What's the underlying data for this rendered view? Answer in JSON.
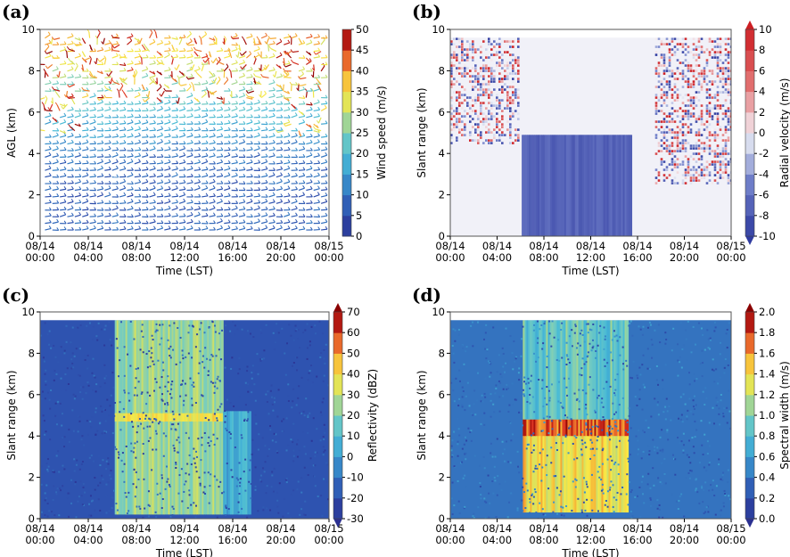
{
  "figure": {
    "time_ticks": [
      "08/14\n00:00",
      "08/14\n04:00",
      "08/14\n08:00",
      "08/14\n12:00",
      "08/14\n16:00",
      "08/14\n20:00",
      "08/15\n00:00"
    ],
    "xlabel": "Time (LST)",
    "colors": {
      "low": "#2b2f8f",
      "mid": "#f4e948",
      "high": "#8a0000"
    }
  },
  "chart_data": [
    {
      "panel": "(a)",
      "type": "heatmap",
      "description_kind": "wind barbs colored by wind speed",
      "xlabel": "Time (LST)",
      "ylabel": "AGL (km)",
      "x_ticks": [
        "08/14\n00:00",
        "08/14\n04:00",
        "08/14\n08:00",
        "08/14\n12:00",
        "08/14\n16:00",
        "08/14\n20:00",
        "08/15\n00:00"
      ],
      "xlim_hours": [
        0,
        24
      ],
      "ylim": [
        0,
        10
      ],
      "y_ticks": [
        0,
        2,
        4,
        6,
        8,
        10
      ],
      "colorbar": {
        "label": "Wind speed (m/s)",
        "min": 0,
        "max": 50,
        "ticks": [
          0,
          5,
          10,
          15,
          20,
          25,
          30,
          35,
          40,
          45,
          50
        ],
        "extend": "none"
      },
      "speed_profile": {
        "heights_km": [
          0.5,
          2,
          4,
          5,
          6,
          7,
          8,
          9.5
        ],
        "speed_ms": [
          8,
          7,
          10,
          16,
          20,
          24,
          30,
          40
        ]
      }
    },
    {
      "panel": "(b)",
      "type": "heatmap",
      "xlabel": "Time (LST)",
      "ylabel": "Slant range (km)",
      "x_ticks": [
        "08/14\n00:00",
        "08/14\n04:00",
        "08/14\n08:00",
        "08/14\n12:00",
        "08/14\n16:00",
        "08/14\n20:00",
        "08/15\n00:00"
      ],
      "xlim_hours": [
        0,
        24
      ],
      "ylim": [
        0,
        10
      ],
      "y_ticks": [
        0,
        2,
        4,
        6,
        8,
        10
      ],
      "colorbar": {
        "label": "Radial velocity (m/s)",
        "min": -10,
        "max": 10,
        "ticks": [
          -10,
          -8,
          -6,
          -4,
          -2,
          0,
          2,
          4,
          6,
          8,
          10
        ],
        "extend": "both"
      },
      "regions": [
        {
          "t_start_h": 6.1,
          "t_end_h": 15.5,
          "range_start_km": 0,
          "range_end_km": 4.9,
          "value": -7
        },
        {
          "t_start_h": 0,
          "t_end_h": 5.8,
          "range_start_km": 4.5,
          "range_end_km": 9.6,
          "value": "noisy ±10"
        },
        {
          "t_start_h": 17.5,
          "t_end_h": 24,
          "range_start_km": 2.5,
          "range_end_km": 9.6,
          "value": "noisy ±10"
        }
      ]
    },
    {
      "panel": "(c)",
      "type": "heatmap",
      "xlabel": "Time (LST)",
      "ylabel": "Slant range (km)",
      "x_ticks": [
        "08/14\n00:00",
        "08/14\n04:00",
        "08/14\n08:00",
        "08/14\n12:00",
        "08/14\n16:00",
        "08/14\n20:00",
        "08/15\n00:00"
      ],
      "xlim_hours": [
        0,
        24
      ],
      "ylim": [
        0,
        10
      ],
      "y_ticks": [
        0,
        2,
        4,
        6,
        8,
        10
      ],
      "colorbar": {
        "label": "Reflectivity (dBZ)",
        "min": -30,
        "max": 70,
        "ticks": [
          -30,
          -20,
          -10,
          0,
          10,
          20,
          30,
          40,
          50,
          60,
          70
        ],
        "extend": "both"
      },
      "regions": [
        {
          "t_start_h": 0,
          "t_end_h": 24,
          "range_start_km": 0,
          "range_end_km": 9.6,
          "value": -18
        },
        {
          "t_start_h": 6.2,
          "t_end_h": 15.2,
          "range_start_km": 0.2,
          "range_end_km": 9.6,
          "value": 25
        },
        {
          "t_start_h": 6.2,
          "t_end_h": 15.2,
          "range_start_km": 4.7,
          "range_end_km": 5.1,
          "value": 38
        },
        {
          "t_start_h": 15.2,
          "t_end_h": 17.5,
          "range_start_km": 0.2,
          "range_end_km": 5.2,
          "value": 5
        }
      ]
    },
    {
      "panel": "(d)",
      "type": "heatmap",
      "xlabel": "Time (LST)",
      "ylabel": "Slant range (km)",
      "x_ticks": [
        "08/14\n00:00",
        "08/14\n04:00",
        "08/14\n08:00",
        "08/14\n12:00",
        "08/14\n16:00",
        "08/14\n20:00",
        "08/15\n00:00"
      ],
      "xlim_hours": [
        0,
        24
      ],
      "ylim": [
        0,
        10
      ],
      "y_ticks": [
        0,
        2,
        4,
        6,
        8,
        10
      ],
      "colorbar": {
        "label": "Spectral width (m/s)",
        "min": 0.0,
        "max": 2.0,
        "ticks": [
          "0.0",
          "0.2",
          "0.4",
          "0.6",
          "0.8",
          "1.0",
          "1.2",
          "1.4",
          "1.6",
          "1.8",
          "2.0"
        ],
        "extend": "both"
      },
      "regions": [
        {
          "t_start_h": 0,
          "t_end_h": 24,
          "range_start_km": 0,
          "range_end_km": 9.6,
          "value": 0.4
        },
        {
          "t_start_h": 6.2,
          "t_end_h": 15.2,
          "range_start_km": 0.3,
          "range_end_km": 4.8,
          "value": 1.4
        },
        {
          "t_start_h": 6.2,
          "t_end_h": 15.2,
          "range_start_km": 4.0,
          "range_end_km": 4.8,
          "value": 1.75
        },
        {
          "t_start_h": 6.2,
          "t_end_h": 15.2,
          "range_start_km": 4.8,
          "range_end_km": 9.6,
          "value": 0.9
        }
      ]
    }
  ]
}
